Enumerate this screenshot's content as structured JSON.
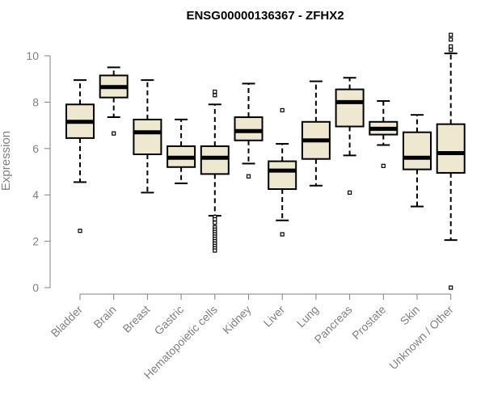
{
  "chart_data": {
    "type": "box",
    "title": "ENSG00000136367 - ZFHX2",
    "xlabel": "",
    "ylabel": "Expression",
    "ylim": [
      0,
      11
    ],
    "yticks": [
      0,
      2,
      4,
      6,
      8,
      10
    ],
    "box_fill": "#efe8d0",
    "categories": [
      "Bladder",
      "Brain",
      "Breast",
      "Gastric",
      "Hematopoietic cells",
      "Kidney",
      "Liver",
      "Lung",
      "Pancreas",
      "Prostate",
      "Skin",
      "Unknown / Other"
    ],
    "boxes": [
      {
        "whisker_low": 4.55,
        "q1": 6.45,
        "median": 7.15,
        "q3": 7.9,
        "whisker_high": 8.95,
        "outliers": [
          2.45
        ]
      },
      {
        "whisker_low": 7.35,
        "q1": 8.2,
        "median": 8.65,
        "q3": 9.15,
        "whisker_high": 9.5,
        "outliers": [
          6.65
        ]
      },
      {
        "whisker_low": 4.1,
        "q1": 5.75,
        "median": 6.7,
        "q3": 7.25,
        "whisker_high": 8.95,
        "outliers": []
      },
      {
        "whisker_low": 4.5,
        "q1": 5.2,
        "median": 5.6,
        "q3": 6.1,
        "whisker_high": 7.25,
        "outliers": []
      },
      {
        "whisker_low": 3.1,
        "q1": 4.9,
        "median": 5.6,
        "q3": 6.1,
        "whisker_high": 7.9,
        "outliers": [
          8.45,
          8.3,
          3.05,
          2.95,
          2.8,
          2.6,
          2.5,
          2.4,
          2.3,
          2.2,
          2.1,
          2.0,
          1.9,
          1.8,
          1.7,
          1.6
        ]
      },
      {
        "whisker_low": 5.35,
        "q1": 6.35,
        "median": 6.75,
        "q3": 7.35,
        "whisker_high": 8.8,
        "outliers": [
          4.8
        ]
      },
      {
        "whisker_low": 2.9,
        "q1": 4.25,
        "median": 5.05,
        "q3": 5.45,
        "whisker_high": 6.2,
        "outliers": [
          7.65,
          2.3
        ]
      },
      {
        "whisker_low": 4.4,
        "q1": 5.55,
        "median": 6.35,
        "q3": 7.15,
        "whisker_high": 8.9,
        "outliers": []
      },
      {
        "whisker_low": 5.7,
        "q1": 6.95,
        "median": 8.0,
        "q3": 8.55,
        "whisker_high": 9.05,
        "outliers": [
          4.1
        ]
      },
      {
        "whisker_low": 6.15,
        "q1": 6.6,
        "median": 6.85,
        "q3": 7.15,
        "whisker_high": 8.05,
        "outliers": [
          5.25
        ]
      },
      {
        "whisker_low": 3.5,
        "q1": 5.1,
        "median": 5.6,
        "q3": 6.7,
        "whisker_high": 7.45,
        "outliers": []
      },
      {
        "whisker_low": 2.05,
        "q1": 4.95,
        "median": 5.8,
        "q3": 7.05,
        "whisker_high": 10.1,
        "outliers": [
          10.9,
          10.7,
          10.4,
          10.25,
          0.0
        ]
      }
    ]
  }
}
